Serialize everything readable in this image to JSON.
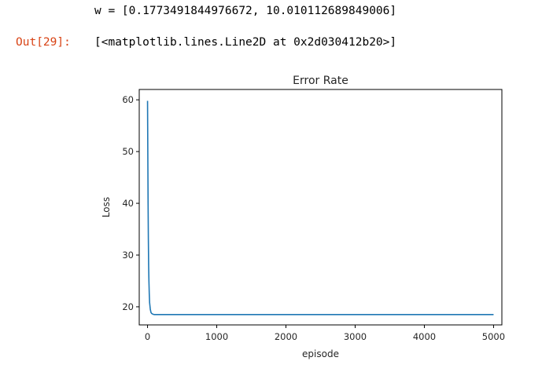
{
  "cell": {
    "stdout_line": "w = [0.1773491844976672, 10.010112689849006]",
    "out_prompt": "Out[29]:",
    "out_repr": "[<matplotlib.lines.Line2D at 0x2d030412b20>]"
  },
  "chart_data": {
    "type": "line",
    "title": "Error Rate",
    "xlabel": "episode",
    "ylabel": "Loss",
    "xlim": [
      -120,
      5120
    ],
    "ylim": [
      16.5,
      62
    ],
    "xticks": [
      0,
      1000,
      2000,
      3000,
      4000,
      5000
    ],
    "yticks": [
      20,
      30,
      40,
      50,
      60
    ],
    "grid": false,
    "line_color": "#1f77b4",
    "series": [
      {
        "x": [
          0,
          2,
          5,
          8,
          12,
          16,
          20,
          25,
          30,
          40,
          50,
          60,
          80,
          100,
          150,
          200,
          500,
          1000,
          2000,
          3000,
          4000,
          5000
        ],
        "values": [
          59.8,
          55,
          47,
          40,
          33,
          28,
          25,
          22.5,
          20.8,
          19.5,
          18.9,
          18.7,
          18.55,
          18.5,
          18.5,
          18.5,
          18.5,
          18.5,
          18.5,
          18.5,
          18.5,
          18.5
        ]
      }
    ]
  }
}
